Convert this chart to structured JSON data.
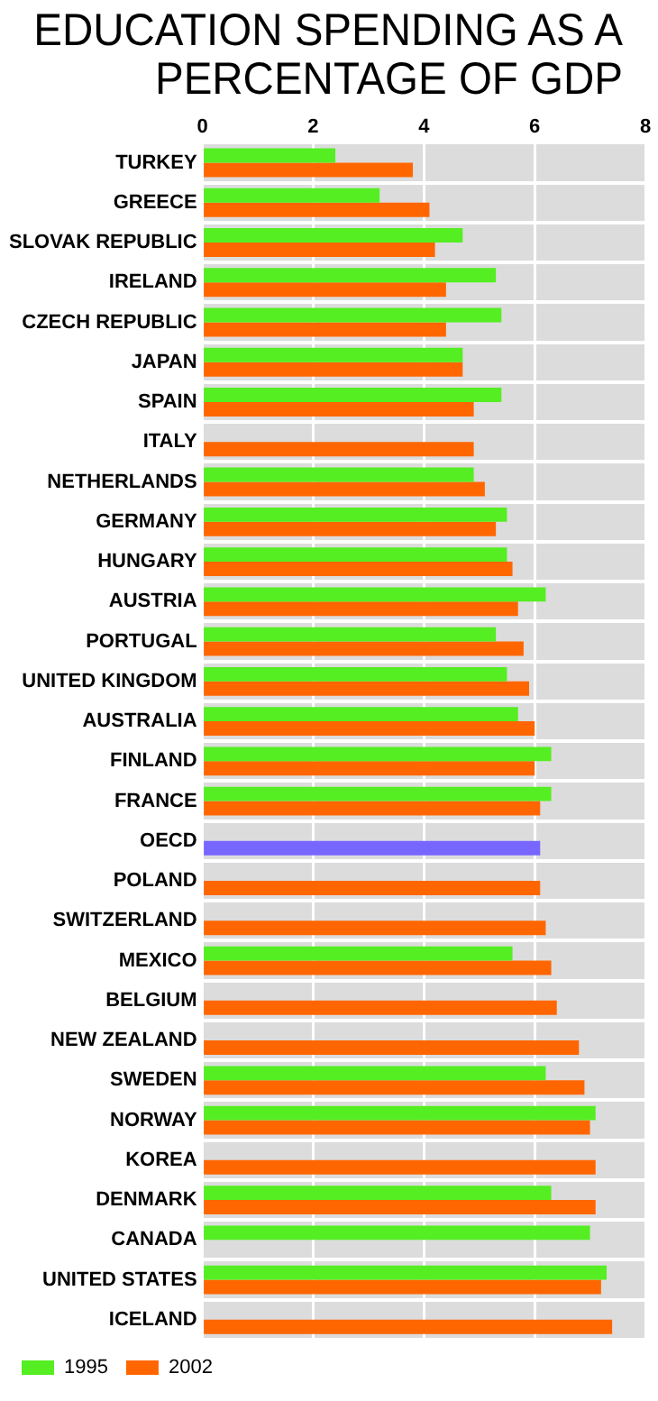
{
  "chart_data": {
    "type": "bar",
    "orientation": "horizontal",
    "title": "EDUCATION SPENDING AS A PERCENTAGE OF GDP",
    "categories": [
      "TURKEY",
      "GREECE",
      "SLOVAK REPUBLIC",
      "IRELAND",
      "CZECH REPUBLIC",
      "JAPAN",
      "SPAIN",
      "ITALY",
      "NETHERLANDS",
      "GERMANY",
      "HUNGARY",
      "AUSTRIA",
      "PORTUGAL",
      "UNITED KINGDOM",
      "AUSTRALIA",
      "FINLAND",
      "FRANCE",
      "OECD",
      "POLAND",
      "SWITZERLAND",
      "MEXICO",
      "BELGIUM",
      "NEW ZEALAND",
      "SWEDEN",
      "NORWAY",
      "KOREA",
      "DENMARK",
      "CANADA",
      "UNITED STATES",
      "ICELAND"
    ],
    "series": [
      {
        "name": "1995",
        "color": "#55ee22",
        "values": [
          2.4,
          3.2,
          4.7,
          5.3,
          5.4,
          4.7,
          5.4,
          null,
          4.9,
          5.5,
          5.5,
          6.2,
          5.3,
          5.5,
          5.7,
          6.3,
          6.3,
          null,
          null,
          null,
          5.6,
          null,
          null,
          6.2,
          7.1,
          null,
          6.3,
          7.0,
          7.3,
          null
        ]
      },
      {
        "name": "2002",
        "color": "#ff6600",
        "colors": [
          "#ff6600",
          "#ff6600",
          "#ff6600",
          "#ff6600",
          "#ff6600",
          "#ff6600",
          "#ff6600",
          "#ff6600",
          "#ff6600",
          "#ff6600",
          "#ff6600",
          "#ff6600",
          "#ff6600",
          "#ff6600",
          "#ff6600",
          "#ff6600",
          "#ff6600",
          "#7766ff",
          "#ff6600",
          "#ff6600",
          "#ff6600",
          "#ff6600",
          "#ff6600",
          "#ff6600",
          "#ff6600",
          "#ff6600",
          "#ff6600",
          "#ff6600",
          "#ff6600",
          "#ff6600"
        ],
        "values": [
          3.8,
          4.1,
          4.2,
          4.4,
          4.4,
          4.7,
          4.9,
          4.9,
          5.1,
          5.3,
          5.6,
          5.7,
          5.8,
          5.9,
          6.0,
          6.0,
          6.1,
          6.1,
          6.1,
          6.2,
          6.3,
          6.4,
          6.8,
          6.9,
          7.0,
          7.1,
          7.1,
          null,
          7.2,
          7.4
        ]
      }
    ],
    "xlim": [
      0,
      8
    ],
    "xticks": [
      0,
      2,
      4,
      6,
      8
    ],
    "grid": true,
    "legend": "bottom left"
  }
}
